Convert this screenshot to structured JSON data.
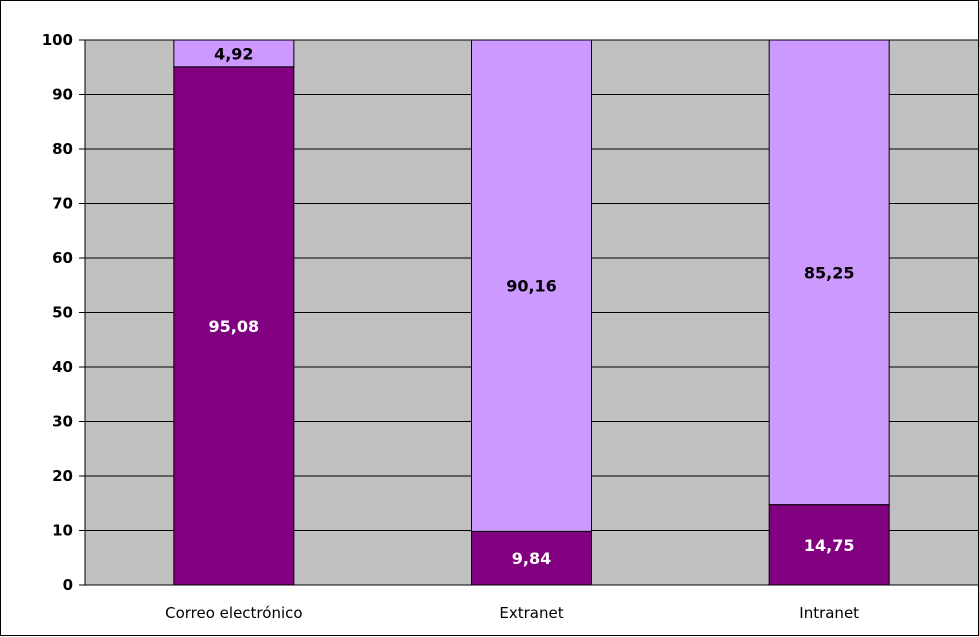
{
  "chart_data": {
    "type": "bar",
    "stacked": true,
    "categories": [
      "Correo electrónico",
      "Extranet",
      "Intranet"
    ],
    "series": [
      {
        "values": [
          95.08,
          9.84,
          14.75
        ],
        "color": "#800080",
        "label_color": "#ffffff",
        "labels": [
          "95,08",
          "9,84",
          "14,75"
        ]
      },
      {
        "values": [
          4.92,
          90.16,
          85.25
        ],
        "color": "#cc99ff",
        "label_color": "#000000",
        "labels": [
          "4,92",
          "90,16",
          "85,25"
        ]
      }
    ],
    "ylim": [
      0,
      100
    ],
    "yticks": [
      0,
      10,
      20,
      30,
      40,
      50,
      60,
      70,
      80,
      90,
      100
    ],
    "grid": true,
    "plot_background": "#c0c0c0",
    "title": "",
    "xlabel": "",
    "ylabel": ""
  }
}
